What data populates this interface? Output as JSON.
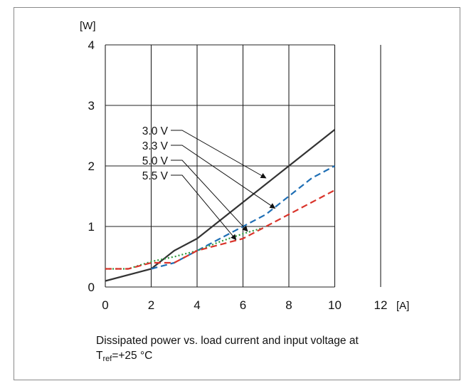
{
  "chart_data": {
    "type": "line",
    "xlabel": "[A]",
    "ylabel": "[W]",
    "xlim": [
      0,
      12
    ],
    "ylim": [
      0,
      4
    ],
    "xticks": [
      0,
      2,
      4,
      6,
      8,
      10,
      12
    ],
    "yticks": [
      0,
      1,
      2,
      3,
      4
    ],
    "grid": true,
    "series": [
      {
        "name": "3.0 V",
        "color": "#333333",
        "dash": "solid",
        "x": [
          0,
          2,
          3,
          4,
          6,
          8,
          10
        ],
        "y": [
          0.1,
          0.3,
          0.6,
          0.8,
          1.4,
          2.0,
          2.6
        ]
      },
      {
        "name": "3.3 V",
        "color": "#1f6fb5",
        "dash": "dashed",
        "x": [
          2,
          3,
          4,
          5,
          6,
          7,
          8,
          9,
          10
        ],
        "y": [
          0.3,
          0.4,
          0.6,
          0.8,
          1.0,
          1.2,
          1.5,
          1.8,
          2.0
        ]
      },
      {
        "name": "5.0 V",
        "color": "#2e9a3e",
        "dash": "dotted",
        "x": [
          0,
          1,
          2,
          3,
          4,
          5,
          6,
          6.8
        ],
        "y": [
          0.3,
          0.3,
          0.42,
          0.5,
          0.6,
          0.75,
          0.88,
          0.97
        ]
      },
      {
        "name": "5.5 V",
        "color": "#d9342b",
        "dash": "dashed",
        "x": [
          0,
          1,
          2,
          3,
          4,
          5,
          6,
          7,
          8,
          9,
          10
        ],
        "y": [
          0.3,
          0.3,
          0.4,
          0.4,
          0.6,
          0.7,
          0.8,
          1.0,
          1.2,
          1.4,
          1.6
        ]
      }
    ]
  },
  "caption": {
    "line1": "Dissipated power vs. load current and input voltage at",
    "line2_prefix": "T",
    "line2_sub": "ref",
    "line2_suffix": "=+25 °C"
  }
}
